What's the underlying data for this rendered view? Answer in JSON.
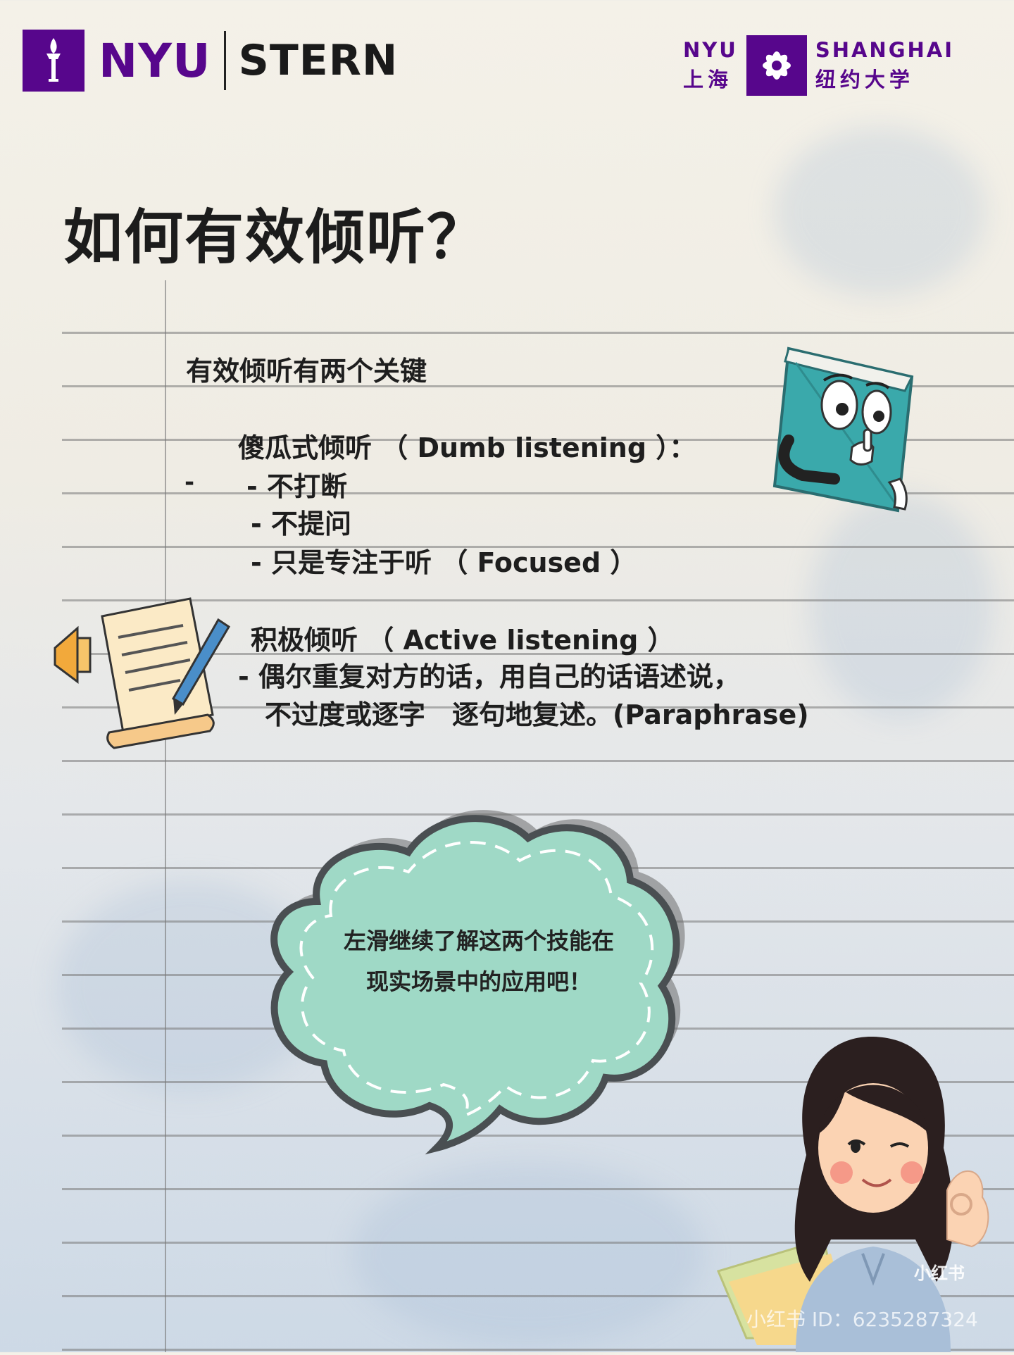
{
  "header": {
    "left_logo": {
      "nyu": "NYU",
      "stern": "STERN"
    },
    "right_logo": {
      "nyu": "NYU",
      "shanghai": "SHANGHAI",
      "cn_city": "上海",
      "cn_univ": "纽约大学"
    }
  },
  "title": "如何有效倾听？",
  "content": {
    "key_line": "有效倾听有两个关键",
    "dumb_heading": "傻瓜式倾听 （ Dumb listening ）：",
    "dumb_stray_dash": "-",
    "dumb_items": [
      "- 不打断",
      "- 不提问",
      "- 只是专注于听 （ Focused ）"
    ],
    "active_heading": "积极倾听 （ Active listening ）",
    "active_lines": [
      "- 偶尔重复对方的话，用自己的话语述说，",
      "不过度或逐字　逐句地复述。(Paraphrase)"
    ]
  },
  "bubble": {
    "lines": [
      "左滑继续了解这两个技能在",
      "现实场景中的应用吧！"
    ]
  },
  "watermark": {
    "badge": "小红书",
    "id": "小红书 ID：6235287324"
  },
  "colors": {
    "nyu_purple": "#57068c",
    "bubble_fill": "#9fd9c6",
    "book_teal": "#4fc3c5"
  },
  "icons": [
    "nyu-torch-icon",
    "shanghai-seal-icon",
    "book-character-icon",
    "document-pen-icon",
    "megaphone-icon",
    "girl-ok-gesture-icon"
  ]
}
